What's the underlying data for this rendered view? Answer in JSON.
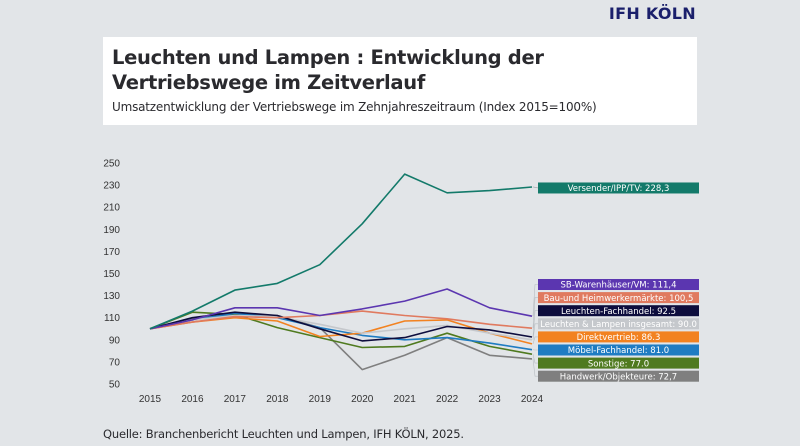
{
  "brand": {
    "logo": "IFH KÖLN",
    "logo_color": "#1a1f6b"
  },
  "header": {
    "title_line1": "Leuchten und Lampen : Entwicklung der",
    "title_line2": "Vertriebswege im Zeitverlauf",
    "subtitle": "Umsatzentwicklung der Vertriebswege im Zehnjahreszeitraum (Index 2015=100%)"
  },
  "source": "Quelle: Branchenbericht Leuchten und Lampen, IFH KÖLN, 2025.",
  "chart_data": {
    "type": "line",
    "title": "Leuchten und Lampen : Entwicklung der Vertriebswege im Zeitverlauf",
    "subtitle": "Umsatzentwicklung der Vertriebswege im Zehnjahreszeitraum (Index 2015=100%)",
    "xlabel": "",
    "ylabel": "",
    "x": [
      "2015",
      "2016",
      "2017",
      "2018",
      "2019",
      "2020",
      "2021",
      "2022",
      "2023",
      "2024"
    ],
    "ylim": [
      50,
      250
    ],
    "yticks": [
      50,
      70,
      90,
      110,
      130,
      150,
      170,
      190,
      210,
      230,
      250
    ],
    "grid": false,
    "legend_position": "right",
    "series": [
      {
        "name": "Versender/IPP/TV",
        "label": "Versender/IPP/TV: 228,3",
        "color": "#137a6a",
        "values": [
          100,
          116,
          135,
          141,
          158,
          195,
          240,
          223,
          225,
          228.3
        ]
      },
      {
        "name": "SB-Warenhäuser/VM",
        "label": "SB-Warenhäuser/VM: 111,4",
        "color": "#5b36b0",
        "values": [
          100,
          108,
          119,
          119,
          112,
          118,
          125,
          136,
          119,
          111.4
        ]
      },
      {
        "name": "Bau-und Heimwerkermärkte",
        "label": "Bau-und Heimwerkermärkte: 100,5",
        "color": "#e07a5f",
        "values": [
          100,
          106,
          111,
          110,
          112,
          116,
          112,
          109,
          104,
          100.5
        ]
      },
      {
        "name": "Leuchten-Fachhandel",
        "label": "Leuchten-Fachhandel: 92.5",
        "color": "#0d0d3d",
        "values": [
          100,
          110,
          115,
          112,
          100,
          89,
          92,
          102,
          99,
          92.5
        ]
      },
      {
        "name": "Leuchten & Lampen insgesamt",
        "label": "Leuchten & Lampen insgesamt: 90.0",
        "color": "#c5c8cc",
        "values": [
          100,
          108,
          112,
          111,
          104,
          96,
          100,
          103,
          96,
          90.0
        ]
      },
      {
        "name": "Direktvertrieb",
        "label": "Direktvertrieb: 86.3",
        "color": "#f28220",
        "values": [
          100,
          106,
          110,
          107,
          93,
          96,
          107,
          108,
          96,
          86.3
        ]
      },
      {
        "name": "Möbel-Fachhandel",
        "label": "Möbel-Fachhandel: 81.0",
        "color": "#1f7cc2",
        "values": [
          100,
          108,
          114,
          110,
          101,
          94,
          90,
          92,
          87,
          81.0
        ]
      },
      {
        "name": "Sonstige",
        "label": "Sonstige: 77.0",
        "color": "#4f7a1f",
        "values": [
          100,
          115,
          113,
          101,
          92,
          83,
          84,
          96,
          84,
          77.0
        ]
      },
      {
        "name": "Handwerk/Objekteure",
        "label": "Handwerk/Objekteure: 72,7",
        "color": "#7f7f7f",
        "values": [
          100,
          109,
          113,
          112,
          101,
          63,
          76,
          92,
          76,
          72.7
        ]
      }
    ]
  }
}
